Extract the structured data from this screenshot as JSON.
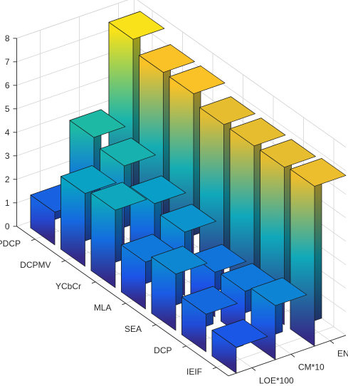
{
  "chart_data": {
    "type": "bar3",
    "title": "",
    "xlabel": "",
    "ylabel": "",
    "zlabel": "",
    "categories": [
      "PDCP",
      "DCPMV",
      "YCbCr",
      "MLA",
      "SEA",
      "DCP",
      "IEIF"
    ],
    "series": [
      {
        "name": "LOE*100",
        "values": [
          1.4,
          3.1,
          3.3,
          2.0,
          2.4,
          1.6,
          1.1
        ]
      },
      {
        "name": "CM*10",
        "values": [
          4.0,
          3.7,
          3.0,
          2.7,
          1.9,
          2.0,
          2.3
        ]
      },
      {
        "name": "EN",
        "values": [
          7.6,
          7.1,
          7.1,
          6.7,
          6.7,
          6.7,
          6.8
        ]
      }
    ],
    "zlim": [
      0,
      8
    ],
    "zticks": [
      0,
      1,
      2,
      3,
      4,
      5,
      6,
      7,
      8
    ],
    "grid": true,
    "colormap": "parula (height-colored bars)"
  }
}
